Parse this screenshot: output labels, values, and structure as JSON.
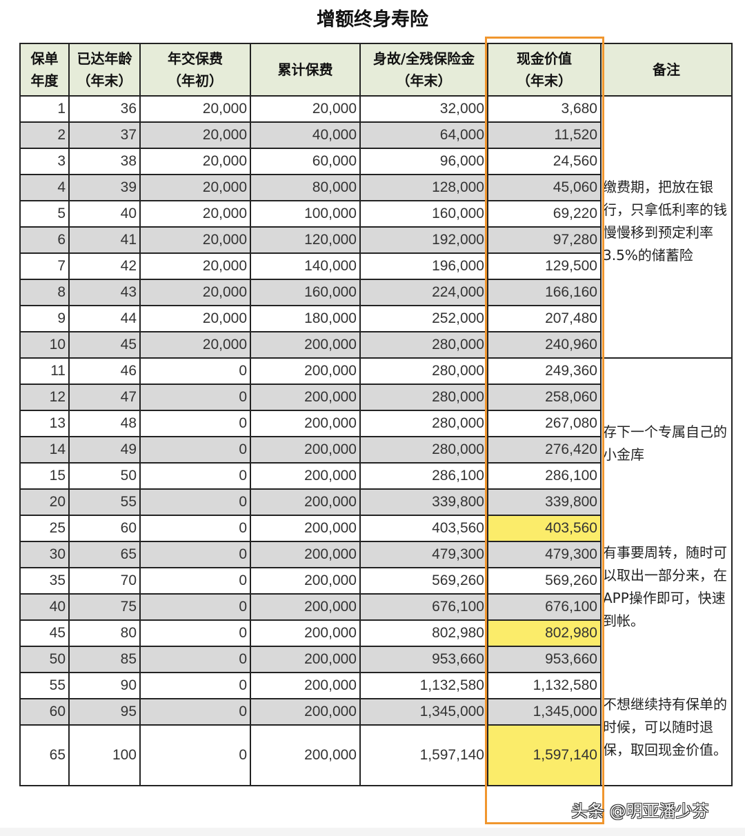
{
  "title": "增额终身寿险",
  "headers": [
    [
      "保单",
      "年度"
    ],
    [
      "已达年龄",
      "（年末）"
    ],
    [
      "年交保费",
      "（年初）"
    ],
    [
      "累计保费",
      ""
    ],
    [
      "身故/全残保险金",
      "（年末）"
    ],
    [
      "现金价值",
      "（年末）"
    ],
    [
      "备注",
      ""
    ]
  ],
  "rows": [
    [
      "1",
      "36",
      "20,000",
      "20,000",
      "32,000",
      "3,680"
    ],
    [
      "2",
      "37",
      "20,000",
      "40,000",
      "64,000",
      "11,520"
    ],
    [
      "3",
      "38",
      "20,000",
      "60,000",
      "96,000",
      "24,560"
    ],
    [
      "4",
      "39",
      "20,000",
      "80,000",
      "128,000",
      "45,060"
    ],
    [
      "5",
      "40",
      "20,000",
      "100,000",
      "160,000",
      "69,220"
    ],
    [
      "6",
      "41",
      "20,000",
      "120,000",
      "192,000",
      "97,280"
    ],
    [
      "7",
      "42",
      "20,000",
      "140,000",
      "196,000",
      "129,500"
    ],
    [
      "8",
      "43",
      "20,000",
      "160,000",
      "224,000",
      "166,160"
    ],
    [
      "9",
      "44",
      "20,000",
      "180,000",
      "252,000",
      "207,480"
    ],
    [
      "10",
      "45",
      "20,000",
      "200,000",
      "280,000",
      "240,960"
    ],
    [
      "11",
      "46",
      "0",
      "200,000",
      "280,000",
      "249,360"
    ],
    [
      "12",
      "47",
      "0",
      "200,000",
      "280,000",
      "258,060"
    ],
    [
      "13",
      "48",
      "0",
      "200,000",
      "280,000",
      "267,080"
    ],
    [
      "14",
      "49",
      "0",
      "200,000",
      "280,000",
      "276,420"
    ],
    [
      "15",
      "50",
      "0",
      "200,000",
      "286,100",
      "286,100"
    ],
    [
      "20",
      "55",
      "0",
      "200,000",
      "339,800",
      "339,800"
    ],
    [
      "25",
      "60",
      "0",
      "200,000",
      "403,560",
      "403,560"
    ],
    [
      "30",
      "65",
      "0",
      "200,000",
      "479,300",
      "479,300"
    ],
    [
      "35",
      "70",
      "0",
      "200,000",
      "569,260",
      "569,260"
    ],
    [
      "40",
      "75",
      "0",
      "200,000",
      "676,100",
      "676,100"
    ],
    [
      "45",
      "80",
      "0",
      "200,000",
      "802,980",
      "802,980"
    ],
    [
      "50",
      "85",
      "0",
      "200,000",
      "953,660",
      "953,660"
    ],
    [
      "55",
      "90",
      "0",
      "200,000",
      "1,132,580",
      "1,132,580"
    ],
    [
      "60",
      "95",
      "0",
      "200,000",
      "1,345,000",
      "1,345,000"
    ],
    [
      "65",
      "100",
      "0",
      "200,000",
      "1,597,140",
      "1,597,140"
    ]
  ],
  "highlighted_rows": [
    16,
    20,
    24
  ],
  "colors": {
    "header_bg": "#e6ecd9",
    "stripe": "#d9d9d9",
    "highlight": "#fbec6a",
    "frame": "#f0962e"
  },
  "notes": [
    "缴费期，把放在银行，只拿低利率的钱慢慢移到预定利率3.5%的储蓄险",
    "存下一个专属自己的小金库",
    "有事要周转，随时可以取出一部分来，在APP操作即可，快速到帐。",
    "不想继续持有保单的时候，可以随时退保，取回现金价值。"
  ],
  "watermark": "头条 @明亚潘少芬"
}
